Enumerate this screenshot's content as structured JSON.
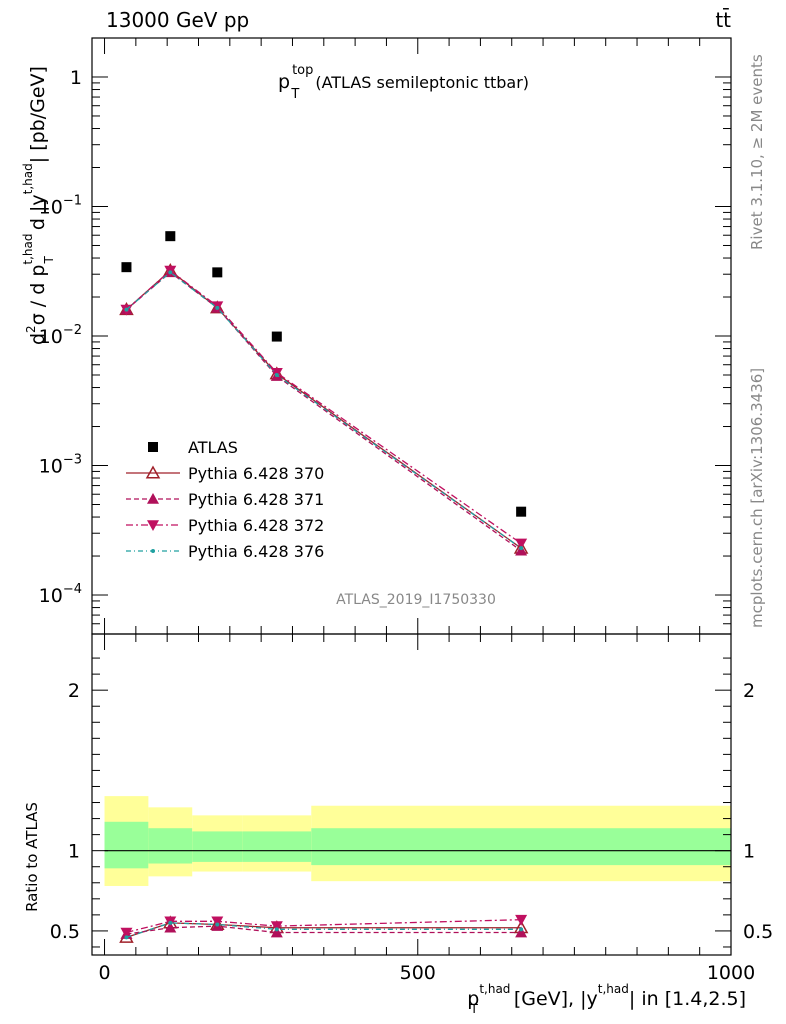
{
  "header": {
    "energy": "13000 GeV pp",
    "process": "tt̄",
    "title_main": "p",
    "title_sup": "top",
    "title_sub": "T",
    "title_desc": "(ATLAS semileptonic ttbar)"
  },
  "side": {
    "rivet": "Rivet 3.1.10, ≥ 2M events",
    "mcplots": "mcplots.cern.ch [arXiv:1306.3436]"
  },
  "watermark": "ATLAS_2019_I1750330",
  "axes": {
    "ylabel_top_a": "d",
    "ylabel_top_b": "2",
    "ylabel_top_c": "σ  /  d p",
    "ylabel_top_d": "t,had",
    "ylabel_top_e": "T",
    "ylabel_top_f": " d |y",
    "ylabel_top_g": "t,had",
    "ylabel_top_h": "| [pb/GeV]",
    "ylabel_bottom": "Ratio to ATLAS",
    "xlabel_a": "p",
    "xlabel_b": "t,had",
    "xlabel_c": "T",
    "xlabel_d": " [GeV], |y",
    "xlabel_e": "t,had",
    "xlabel_f": "| in [1.4,2.5]",
    "top_ticks": [
      {
        "value": 1,
        "label": "1",
        "exp": ""
      },
      {
        "value": 0.1,
        "label": "10",
        "exp": "−1"
      },
      {
        "value": 0.01,
        "label": "10",
        "exp": "−2"
      },
      {
        "value": 0.001,
        "label": "10",
        "exp": "−3"
      },
      {
        "value": 0.0001,
        "label": "10",
        "exp": "−4"
      }
    ],
    "ratio_ticks": [
      {
        "value": 0.5,
        "label": "0.5"
      },
      {
        "value": 1,
        "label": "1"
      },
      {
        "value": 2,
        "label": "2"
      }
    ],
    "x_ticks": [
      {
        "value": 0,
        "label": "0"
      },
      {
        "value": 500,
        "label": "500"
      },
      {
        "value": 1000,
        "label": "1000"
      }
    ]
  },
  "legend": [
    {
      "label": "ATLAS"
    },
    {
      "label": "Pythia 6.428 370"
    },
    {
      "label": "Pythia 6.428 371"
    },
    {
      "label": "Pythia 6.428 372"
    },
    {
      "label": "Pythia 6.428 376"
    }
  ],
  "chart_data": {
    "type": "scatter",
    "xlim": [
      -20,
      1000
    ],
    "ylim_top": [
      5e-05,
      2
    ],
    "ylog_top": true,
    "ylim_ratio": [
      0.35,
      2.35
    ],
    "colors": {
      "data": "#000000",
      "s370": "#a0202a",
      "s371": "#b0105a",
      "s372": "#c01060",
      "s376": "#20a0a0",
      "band_inner": "#99ff99",
      "band_outer": "#ffff99"
    },
    "bins": [
      {
        "xlo": 0,
        "xhi": 70
      },
      {
        "xlo": 70,
        "xhi": 140
      },
      {
        "xlo": 140,
        "xhi": 220
      },
      {
        "xlo": 220,
        "xhi": 330
      },
      {
        "xlo": 330,
        "xhi": 1000
      }
    ],
    "x": [
      35,
      105,
      180,
      275,
      665
    ],
    "atlas": [
      0.034,
      0.059,
      0.031,
      0.0099,
      0.00044
    ],
    "series": [
      {
        "name": "Pythia 6.428 370",
        "key": "s370",
        "marker": "triangle-open",
        "dash": "",
        "values": [
          0.016,
          0.032,
          0.0165,
          0.0051,
          0.00023
        ],
        "ratio": [
          0.46,
          0.55,
          0.54,
          0.52,
          0.52
        ]
      },
      {
        "name": "Pythia 6.428 371",
        "key": "s371",
        "marker": "triangle-up",
        "dash": "5,3",
        "values": [
          0.016,
          0.031,
          0.0165,
          0.0049,
          0.00022
        ],
        "ratio": [
          0.48,
          0.52,
          0.53,
          0.49,
          0.49
        ]
      },
      {
        "name": "Pythia 6.428 372",
        "key": "s372",
        "marker": "triangle-down",
        "dash": "7,3,2,3",
        "values": [
          0.016,
          0.032,
          0.017,
          0.0052,
          0.00025
        ],
        "ratio": [
          0.49,
          0.56,
          0.56,
          0.53,
          0.57
        ]
      },
      {
        "name": "Pythia 6.428 376",
        "key": "s376",
        "marker": "dot",
        "dash": "5,3,1,3",
        "values": [
          0.016,
          0.031,
          0.0165,
          0.005,
          0.00023
        ],
        "ratio": [
          0.46,
          0.55,
          0.54,
          0.51,
          0.51
        ]
      }
    ],
    "band_inner": [
      {
        "lo": 0.89,
        "hi": 1.18
      },
      {
        "lo": 0.92,
        "hi": 1.14
      },
      {
        "lo": 0.93,
        "hi": 1.12
      },
      {
        "lo": 0.93,
        "hi": 1.12
      },
      {
        "lo": 0.91,
        "hi": 1.14
      }
    ],
    "band_outer": [
      {
        "lo": 0.78,
        "hi": 1.34
      },
      {
        "lo": 0.84,
        "hi": 1.27
      },
      {
        "lo": 0.87,
        "hi": 1.22
      },
      {
        "lo": 0.87,
        "hi": 1.22
      },
      {
        "lo": 0.81,
        "hi": 1.28
      }
    ]
  }
}
